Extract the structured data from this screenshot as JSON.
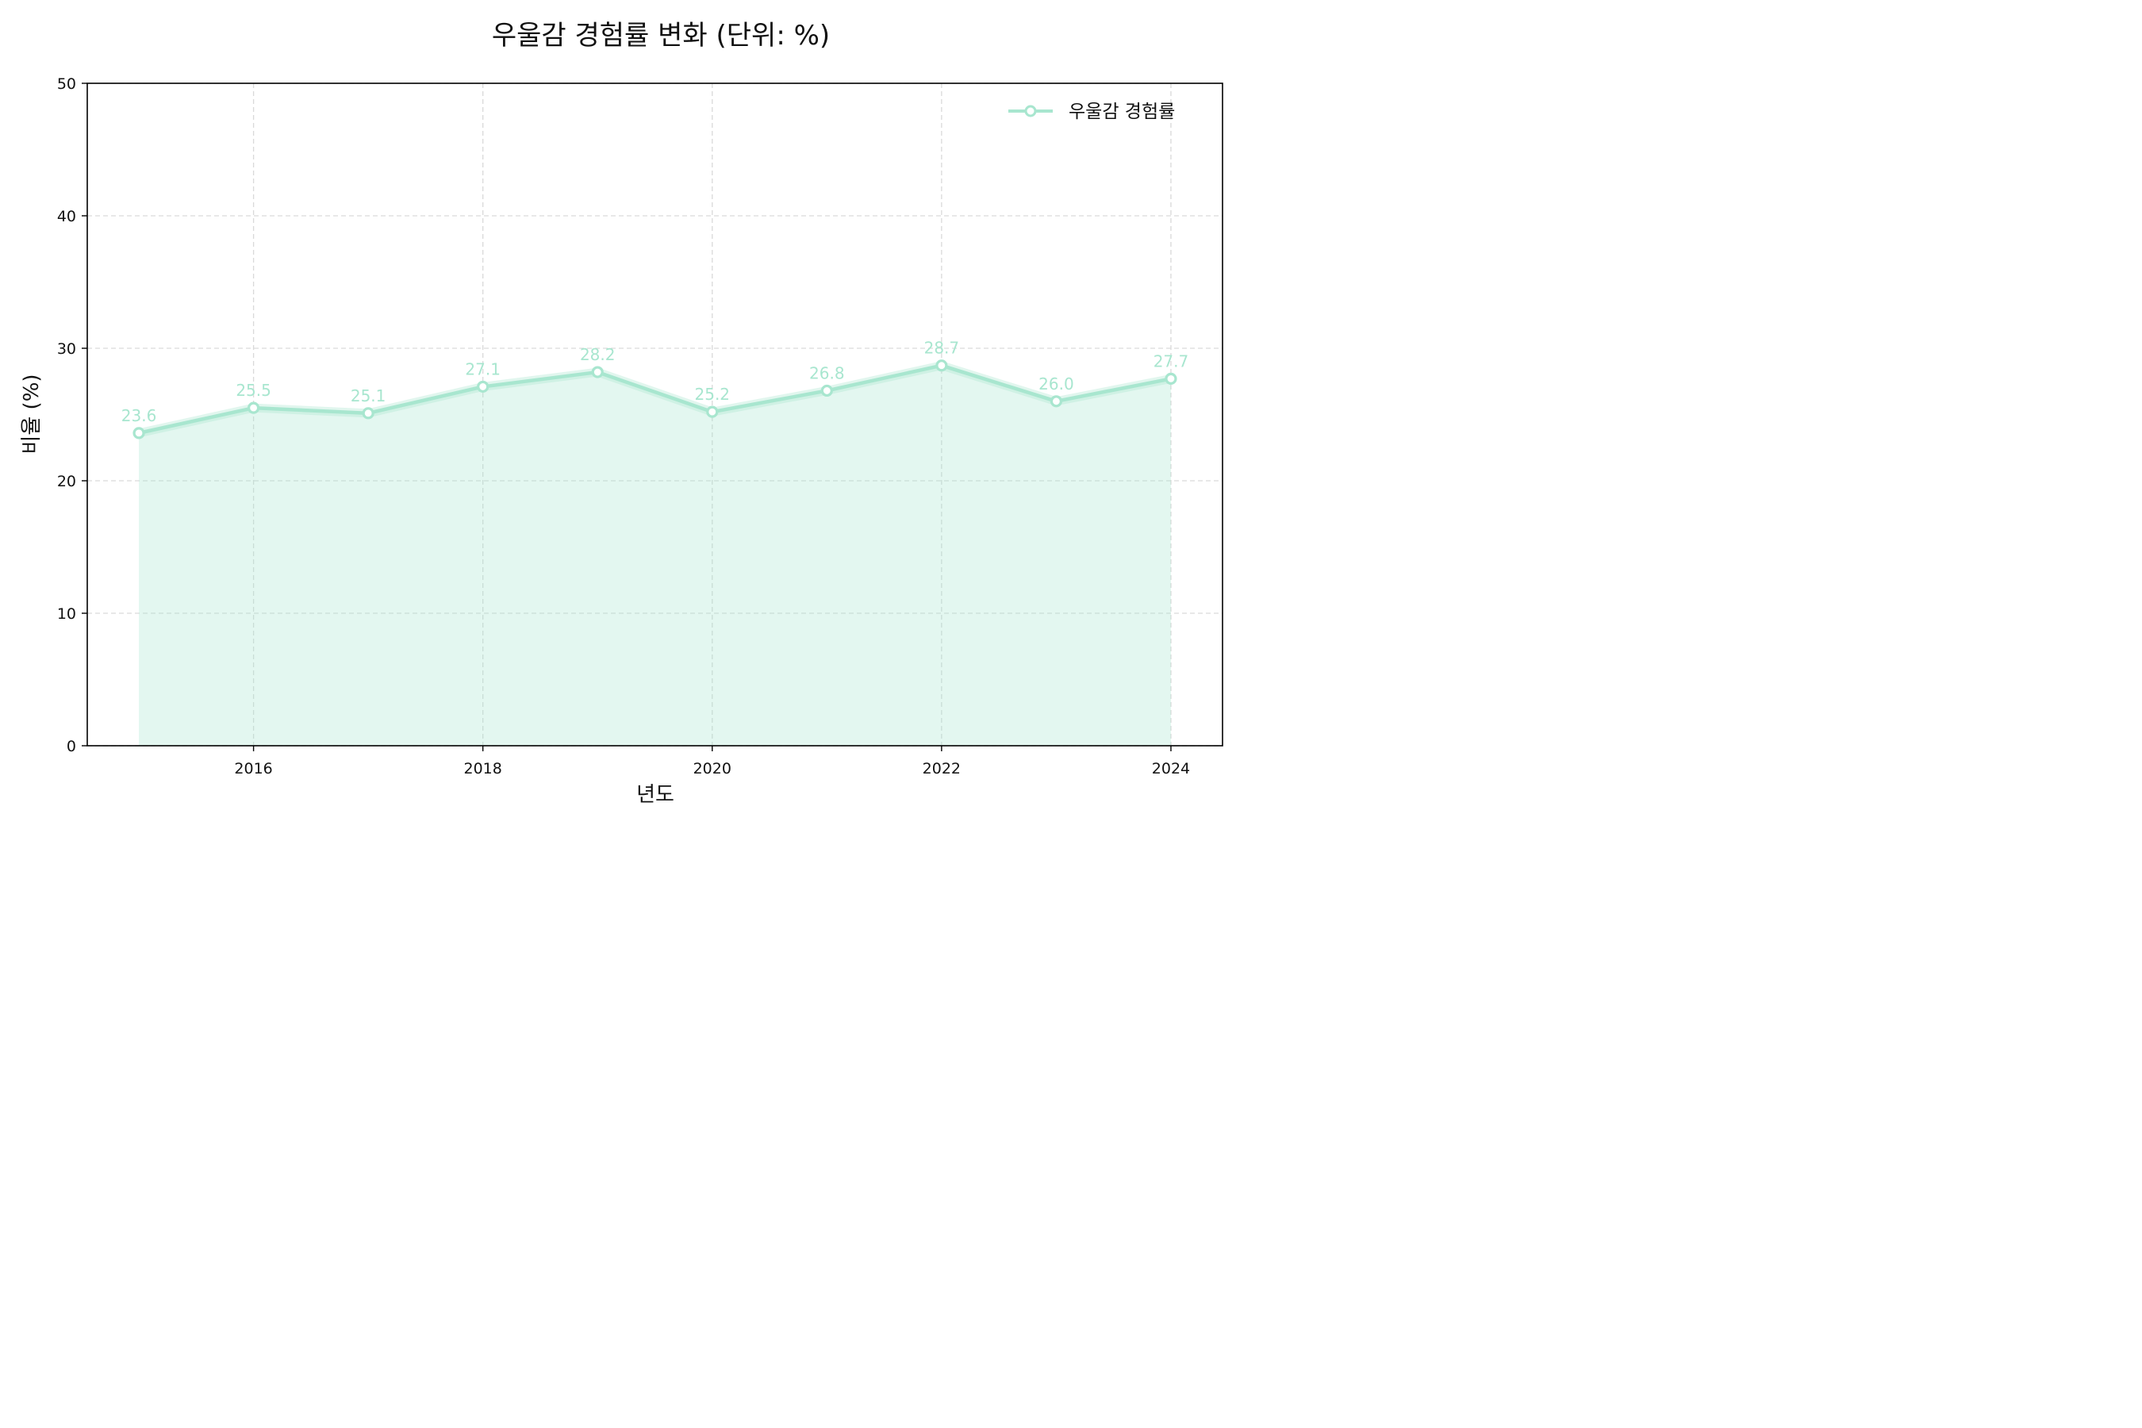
{
  "chart_data": {
    "type": "area",
    "title": "우울감 경험률 변화 (단위: %)",
    "xlabel": "년도",
    "ylabel": "비율 (%)",
    "x": [
      2015,
      2016,
      2017,
      2018,
      2019,
      2020,
      2021,
      2022,
      2023,
      2024
    ],
    "xticks": [
      2016,
      2018,
      2020,
      2022,
      2024
    ],
    "xlim": [
      2014.55,
      2024.45
    ],
    "ylim": [
      0,
      50
    ],
    "yticks": [
      0,
      10,
      20,
      30,
      40,
      50
    ],
    "grid": true,
    "legend_position": "top-right",
    "series": [
      {
        "name": "우울감 경험률",
        "values": [
          23.6,
          25.5,
          25.1,
          27.1,
          28.2,
          25.2,
          26.8,
          28.7,
          26.0,
          27.7
        ],
        "labels": [
          "23.6",
          "25.5",
          "25.1",
          "27.1",
          "28.2",
          "25.2",
          "26.8",
          "28.7",
          "26.0",
          "27.7"
        ],
        "color": "#a8e6cf"
      }
    ]
  }
}
